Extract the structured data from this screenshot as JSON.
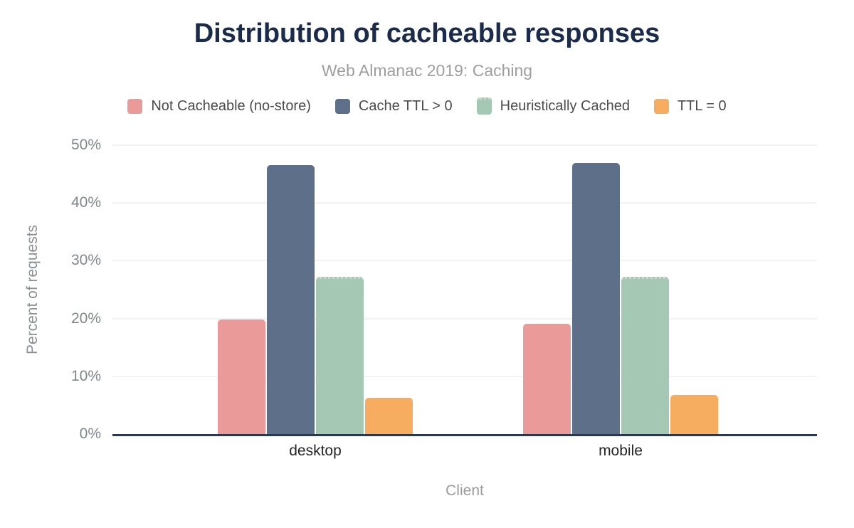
{
  "header": {
    "title": "Distribution of cacheable responses",
    "subtitle": "Web Almanac 2019: Caching"
  },
  "chart_data": {
    "type": "bar",
    "categories": [
      "desktop",
      "mobile"
    ],
    "series": [
      {
        "name": "Not Cacheable (no-store)",
        "color": "#eb9a9a",
        "values": [
          19.8,
          19.1
        ]
      },
      {
        "name": "Cache TTL > 0",
        "color": "#5e7089",
        "values": [
          46.5,
          46.9
        ]
      },
      {
        "name": "Heuristically Cached",
        "color": "#a5c8b5",
        "dotted_top": true,
        "values": [
          26.8,
          26.8
        ]
      },
      {
        "name": "TTL = 0",
        "color": "#f6ad60",
        "values": [
          6.3,
          6.8
        ]
      }
    ],
    "xlabel": "Client",
    "ylabel": "Percent of requests",
    "ylim": [
      0,
      50
    ],
    "grid": true,
    "legend_position": "top",
    "yticks": [
      {
        "value": 0,
        "label": "0%"
      },
      {
        "value": 10,
        "label": "10%"
      },
      {
        "value": 20,
        "label": "20%"
      },
      {
        "value": 30,
        "label": "30%"
      },
      {
        "value": 40,
        "label": "40%"
      },
      {
        "value": 50,
        "label": "50%"
      }
    ]
  },
  "colors": {
    "title_text": "#1b2b4b",
    "subtitle_text": "#9e9e9e",
    "axis_text": "#81868b",
    "category_text": "#252525",
    "baseline": "#2b3950",
    "gridline": "#f2f2f2"
  }
}
